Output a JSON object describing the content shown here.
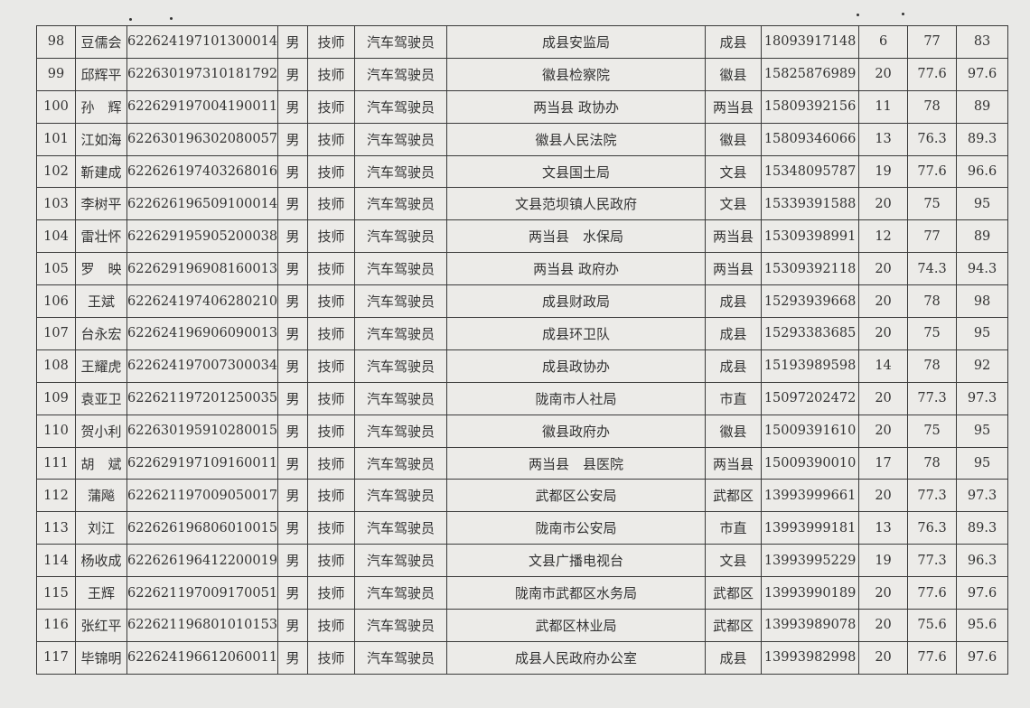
{
  "rows": [
    {
      "no": "98",
      "name": "豆儒会",
      "id": "622624197101300014",
      "sex": "男",
      "level": "技师",
      "job": "汽车驾驶员",
      "unit": "成县安监局",
      "county": "成县",
      "phone": "18093917148",
      "s1": "6",
      "s2": "77",
      "total": "83"
    },
    {
      "no": "99",
      "name": "邱辉平",
      "id": "622630197310181792",
      "sex": "男",
      "level": "技师",
      "job": "汽车驾驶员",
      "unit": "徽县检察院",
      "county": "徽县",
      "phone": "15825876989",
      "s1": "20",
      "s2": "77.6",
      "total": "97.6"
    },
    {
      "no": "100",
      "name": "孙　辉",
      "id": "622629197004190011",
      "sex": "男",
      "level": "技师",
      "job": "汽车驾驶员",
      "unit": "两当县 政协办",
      "county": "两当县",
      "phone": "15809392156",
      "s1": "11",
      "s2": "78",
      "total": "89"
    },
    {
      "no": "101",
      "name": "江如海",
      "id": "622630196302080057",
      "sex": "男",
      "level": "技师",
      "job": "汽车驾驶员",
      "unit": "徽县人民法院",
      "county": "徽县",
      "phone": "15809346066",
      "s1": "13",
      "s2": "76.3",
      "total": "89.3"
    },
    {
      "no": "102",
      "name": "靳建成",
      "id": "622626197403268016",
      "sex": "男",
      "level": "技师",
      "job": "汽车驾驶员",
      "unit": "文县国土局",
      "county": "文县",
      "phone": "15348095787",
      "s1": "19",
      "s2": "77.6",
      "total": "96.6"
    },
    {
      "no": "103",
      "name": "李树平",
      "id": "622626196509100014",
      "sex": "男",
      "level": "技师",
      "job": "汽车驾驶员",
      "unit": "文县范坝镇人民政府",
      "county": "文县",
      "phone": "15339391588",
      "s1": "20",
      "s2": "75",
      "total": "95"
    },
    {
      "no": "104",
      "name": "雷壮怀",
      "id": "622629195905200038",
      "sex": "男",
      "level": "技师",
      "job": "汽车驾驶员",
      "unit": "两当县　水保局",
      "county": "两当县",
      "phone": "15309398991",
      "s1": "12",
      "s2": "77",
      "total": "89"
    },
    {
      "no": "105",
      "name": "罗　映",
      "id": "622629196908160013",
      "sex": "男",
      "level": "技师",
      "job": "汽车驾驶员",
      "unit": "两当县 政府办",
      "county": "两当县",
      "phone": "15309392118",
      "s1": "20",
      "s2": "74.3",
      "total": "94.3"
    },
    {
      "no": "106",
      "name": "王斌",
      "id": "622624197406280210",
      "sex": "男",
      "level": "技师",
      "job": "汽车驾驶员",
      "unit": "成县财政局",
      "county": "成县",
      "phone": "15293939668",
      "s1": "20",
      "s2": "78",
      "total": "98"
    },
    {
      "no": "107",
      "name": "台永宏",
      "id": "622624196906090013",
      "sex": "男",
      "level": "技师",
      "job": "汽车驾驶员",
      "unit": "成县环卫队",
      "county": "成县",
      "phone": "15293383685",
      "s1": "20",
      "s2": "75",
      "total": "95"
    },
    {
      "no": "108",
      "name": "王耀虎",
      "id": "622624197007300034",
      "sex": "男",
      "level": "技师",
      "job": "汽车驾驶员",
      "unit": "成县政协办",
      "county": "成县",
      "phone": "15193989598",
      "s1": "14",
      "s2": "78",
      "total": "92"
    },
    {
      "no": "109",
      "name": "袁亚卫",
      "id": "622621197201250035",
      "sex": "男",
      "level": "技师",
      "job": "汽车驾驶员",
      "unit": "陇南市人社局",
      "county": "市直",
      "phone": "15097202472",
      "s1": "20",
      "s2": "77.3",
      "total": "97.3"
    },
    {
      "no": "110",
      "name": "贺小利",
      "id": "622630195910280015",
      "sex": "男",
      "level": "技师",
      "job": "汽车驾驶员",
      "unit": "徽县政府办",
      "county": "徽县",
      "phone": "15009391610",
      "s1": "20",
      "s2": "75",
      "total": "95"
    },
    {
      "no": "111",
      "name": "胡　斌",
      "id": "622629197109160011",
      "sex": "男",
      "level": "技师",
      "job": "汽车驾驶员",
      "unit": "两当县　县医院",
      "county": "两当县",
      "phone": "15009390010",
      "s1": "17",
      "s2": "78",
      "total": "95"
    },
    {
      "no": "112",
      "name": "蒲飚",
      "id": "622621197009050017",
      "sex": "男",
      "level": "技师",
      "job": "汽车驾驶员",
      "unit": "武都区公安局",
      "county": "武都区",
      "phone": "13993999661",
      "s1": "20",
      "s2": "77.3",
      "total": "97.3"
    },
    {
      "no": "113",
      "name": "刘江",
      "id": "622626196806010015",
      "sex": "男",
      "level": "技师",
      "job": "汽车驾驶员",
      "unit": "陇南市公安局",
      "county": "市直",
      "phone": "13993999181",
      "s1": "13",
      "s2": "76.3",
      "total": "89.3"
    },
    {
      "no": "114",
      "name": "杨收成",
      "id": "622626196412200019",
      "sex": "男",
      "level": "技师",
      "job": "汽车驾驶员",
      "unit": "文县广播电视台",
      "county": "文县",
      "phone": "13993995229",
      "s1": "19",
      "s2": "77.3",
      "total": "96.3"
    },
    {
      "no": "115",
      "name": "王辉",
      "id": "622621197009170051",
      "sex": "男",
      "level": "技师",
      "job": "汽车驾驶员",
      "unit": "陇南市武都区水务局",
      "county": "武都区",
      "phone": "13993990189",
      "s1": "20",
      "s2": "77.6",
      "total": "97.6"
    },
    {
      "no": "116",
      "name": "张红平",
      "id": "622621196801010153",
      "sex": "男",
      "level": "技师",
      "job": "汽车驾驶员",
      "unit": "武都区林业局",
      "county": "武都区",
      "phone": "13993989078",
      "s1": "20",
      "s2": "75.6",
      "total": "95.6"
    },
    {
      "no": "117",
      "name": "毕锦明",
      "id": "622624196612060011",
      "sex": "男",
      "level": "技师",
      "job": "汽车驾驶员",
      "unit": "成县人民政府办公室",
      "county": "成县",
      "phone": "13993982998",
      "s1": "20",
      "s2": "77.6",
      "total": "97.6"
    }
  ]
}
